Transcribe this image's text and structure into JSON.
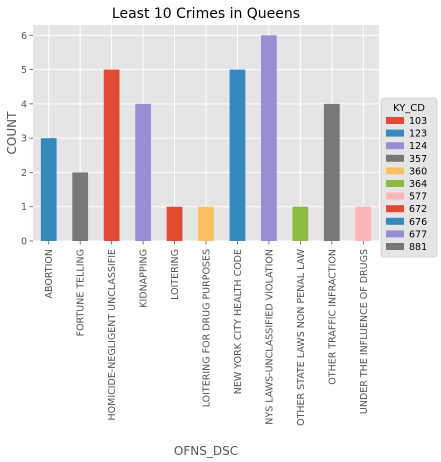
{
  "chart_data": {
    "type": "bar",
    "title": "Least 10 Crimes in Queens",
    "xlabel": "OFNS_DSC",
    "ylabel": "COUNT",
    "ylim": [
      0,
      6.3
    ],
    "yticks": [
      0,
      1,
      2,
      3,
      4,
      5,
      6
    ],
    "grid": true,
    "stacked": true,
    "legend": {
      "title": "KY_CD",
      "placement": "right"
    },
    "categories": [
      "ABORTION",
      "FORTUNE TELLING",
      "HOMICIDE-NEGLIGENT UNCLASSIFIE",
      "KIDNAPPING",
      "LOITERING",
      "LOITERING FOR DRUG PURPOSES",
      "NEW YORK CITY HEALTH CODE",
      "NYS LAWS-UNCLASSIFIED VIOLATION",
      "OTHER STATE LAWS NON PENAL LAW",
      "OTHER TRAFFIC INFRACTION",
      "UNDER THE INFLUENCE OF DRUGS"
    ],
    "series": [
      {
        "name": "103",
        "color": "#E24A33",
        "values": [
          0,
          0,
          0,
          0,
          0,
          0,
          0,
          0,
          0,
          0,
          0
        ]
      },
      {
        "name": "123",
        "color": "#348ABD",
        "values": [
          3,
          0,
          0,
          0,
          0,
          0,
          0,
          0,
          0,
          0,
          0
        ]
      },
      {
        "name": "124",
        "color": "#988ED5",
        "values": [
          0,
          0,
          0,
          4,
          0,
          0,
          0,
          0,
          0,
          0,
          0
        ]
      },
      {
        "name": "357",
        "color": "#777777",
        "values": [
          0,
          2,
          0,
          0,
          0,
          0,
          0,
          0,
          0,
          0,
          0
        ]
      },
      {
        "name": "360",
        "color": "#FBC15E",
        "values": [
          0,
          0,
          0,
          0,
          0,
          1,
          0,
          0,
          0,
          0,
          0
        ]
      },
      {
        "name": "364",
        "color": "#8EBA42",
        "values": [
          0,
          0,
          0,
          0,
          0,
          0,
          0,
          0,
          1,
          0,
          0
        ]
      },
      {
        "name": "577",
        "color": "#FFB5B8",
        "values": [
          0,
          0,
          0,
          0,
          0,
          0,
          0,
          0,
          0,
          0,
          1
        ]
      },
      {
        "name": "672",
        "color": "#E24A33",
        "values": [
          0,
          0,
          5,
          0,
          1,
          0,
          0,
          0,
          0,
          0,
          0
        ]
      },
      {
        "name": "676",
        "color": "#348ABD",
        "values": [
          0,
          0,
          0,
          0,
          0,
          0,
          5,
          0,
          0,
          0,
          0
        ]
      },
      {
        "name": "677",
        "color": "#988ED5",
        "values": [
          0,
          0,
          0,
          0,
          0,
          0,
          0,
          6,
          0,
          0,
          0
        ]
      },
      {
        "name": "881",
        "color": "#777777",
        "values": [
          0,
          0,
          0,
          0,
          0,
          0,
          0,
          0,
          0,
          4,
          0
        ]
      }
    ]
  }
}
